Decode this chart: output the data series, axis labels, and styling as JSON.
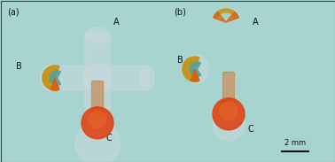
{
  "fig_width": 3.78,
  "fig_height": 1.83,
  "dpi": 100,
  "bg_color": "#a8d4d0",
  "border_color": "#444444",
  "border_lw": 0.8,
  "panel_a_label": "(a)",
  "panel_b_label": "(b)",
  "panel_label_fontsize": 7,
  "scale_bar_label": "2 mm",
  "scale_bar_fontsize": 6,
  "letter_fontsize": 7,
  "letter_color": "#111111",
  "wax_color": "#c8d8dc",
  "wax_alpha": 0.55,
  "orange_color": "#d86010",
  "blue_color": "#50a0a8",
  "gold_color": "#c89010",
  "red_orange": "#e04010",
  "channel_orange": "#c87830"
}
